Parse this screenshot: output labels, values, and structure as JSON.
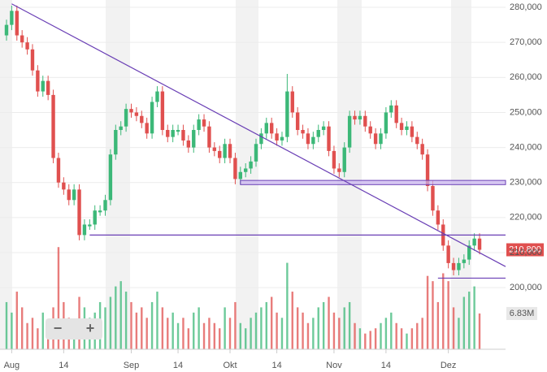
{
  "chart_data": {
    "type": "candlestick",
    "up_color": "#3cb878",
    "down_color": "#e0504f",
    "line_color": "#6a3fb5",
    "ylim": [
      182400,
      282100
    ],
    "yticks": [
      {
        "value": 200000,
        "label": "200,000"
      },
      {
        "value": 210000,
        "label": "210,000"
      },
      {
        "value": 220000,
        "label": "220,000"
      },
      {
        "value": 230000,
        "label": "230,000"
      },
      {
        "value": 240000,
        "label": "240,000"
      },
      {
        "value": 250000,
        "label": "250,000"
      },
      {
        "value": 260000,
        "label": "260,000"
      },
      {
        "value": 270000,
        "label": "270,000"
      },
      {
        "value": 280000,
        "label": "280,000"
      }
    ],
    "xlim": [
      -1.25,
      96
    ],
    "xticks": [
      {
        "value": 1,
        "label": "Aug"
      },
      {
        "value": 11,
        "label": "14"
      },
      {
        "value": 24,
        "label": "Sep"
      },
      {
        "value": 33,
        "label": "14"
      },
      {
        "value": 43,
        "label": "Okt"
      },
      {
        "value": 52,
        "label": "14"
      },
      {
        "value": 63,
        "label": "Nov"
      },
      {
        "value": 73,
        "label": "14"
      },
      {
        "value": 85,
        "label": "Dez"
      }
    ],
    "open": [
      272000,
      275000,
      279000,
      272000,
      270000,
      268000,
      262000,
      256000,
      259000,
      255000,
      237000,
      230000,
      228000,
      225000,
      228000,
      215000,
      217500,
      218000,
      221500,
      222000,
      225000,
      238000,
      245000,
      246000,
      251000,
      250000,
      249000,
      247000,
      244000,
      253000,
      256000,
      245000,
      243000,
      244500,
      245000,
      242000,
      240000,
      245000,
      248000,
      246000,
      240000,
      239000,
      237000,
      241000,
      237000,
      231000,
      233000,
      234000,
      236000,
      241000,
      244000,
      247000,
      244000,
      242000,
      243000,
      256000,
      250000,
      245000,
      244000,
      241000,
      243000,
      245000,
      246000,
      239000,
      234000,
      233000,
      240000,
      249000,
      248000,
      249000,
      246000,
      244000,
      241000,
      244000,
      250000,
      252000,
      247000,
      245000,
      246000,
      243000,
      241000,
      238000,
      229000,
      222000,
      218000,
      212000,
      207000,
      205000,
      207000,
      208000,
      212000,
      214000
    ],
    "high": [
      276500,
      280500,
      280500,
      273500,
      271500,
      269500,
      263500,
      260500,
      260500,
      256500,
      238500,
      231500,
      229500,
      229500,
      229500,
      219500,
      219500,
      223500,
      223500,
      226500,
      239500,
      246500,
      247500,
      252500,
      252500,
      251500,
      250500,
      248500,
      254500,
      257500,
      257500,
      246500,
      246500,
      246500,
      246500,
      243500,
      246500,
      249500,
      249500,
      247500,
      241500,
      240500,
      242500,
      242500,
      238500,
      234500,
      235500,
      237500,
      242500,
      245500,
      248500,
      248500,
      245500,
      244500,
      261000,
      257500,
      251500,
      246500,
      245500,
      244500,
      246500,
      247500,
      247500,
      240500,
      235500,
      241500,
      250500,
      250500,
      250500,
      250500,
      247500,
      245500,
      245500,
      251500,
      253500,
      253500,
      248500,
      247500,
      247500,
      244500,
      242500,
      239500,
      230500,
      223500,
      219500,
      213500,
      208500,
      208500,
      209500,
      213500,
      215500,
      215500
    ],
    "low": [
      270500,
      273500,
      270500,
      268500,
      266500,
      260500,
      254500,
      254500,
      253500,
      235500,
      228500,
      226500,
      223500,
      223500,
      213500,
      213500,
      216500,
      216500,
      220500,
      220500,
      223500,
      236500,
      243500,
      244500,
      248500,
      247500,
      245500,
      242500,
      242500,
      251500,
      243500,
      241500,
      241500,
      243500,
      240500,
      238500,
      238500,
      243500,
      244500,
      238500,
      237500,
      235500,
      235500,
      235500,
      229500,
      229500,
      231500,
      232500,
      234500,
      239500,
      242500,
      242500,
      240500,
      240500,
      241500,
      248500,
      243500,
      242500,
      239500,
      239500,
      241500,
      243500,
      237500,
      232500,
      231500,
      231500,
      238500,
      246500,
      246500,
      244500,
      242500,
      239500,
      239500,
      242500,
      248500,
      245500,
      243500,
      243500,
      241500,
      239500,
      236500,
      227500,
      220500,
      216500,
      210500,
      205500,
      203500,
      203500,
      205500,
      206500,
      210500,
      209500
    ],
    "close": [
      275000,
      279000,
      272000,
      270000,
      268000,
      262000,
      256000,
      259000,
      255000,
      237000,
      230000,
      228000,
      225000,
      228000,
      215000,
      218000,
      218000,
      222000,
      222000,
      225000,
      238000,
      245000,
      246000,
      251000,
      250000,
      249000,
      247000,
      244000,
      253000,
      256000,
      245000,
      243000,
      245000,
      245000,
      242000,
      240000,
      245000,
      248000,
      246000,
      240000,
      239000,
      237000,
      241000,
      237000,
      231000,
      233000,
      234000,
      236000,
      241000,
      244000,
      247000,
      244000,
      242000,
      243000,
      256000,
      250000,
      245000,
      244000,
      241000,
      243000,
      245000,
      246000,
      239000,
      234000,
      233000,
      240000,
      249000,
      248000,
      249000,
      246000,
      244000,
      241000,
      244000,
      250000,
      252000,
      247000,
      245000,
      246000,
      243000,
      241000,
      238000,
      229000,
      222000,
      218000,
      212000,
      207000,
      205000,
      207000,
      208000,
      212000,
      214000,
      210800
    ],
    "volume": [
      9,
      7,
      11,
      8,
      5,
      6,
      4,
      7,
      5,
      8,
      19.5,
      9,
      6,
      5,
      10,
      8,
      6,
      7,
      9,
      8,
      10,
      12,
      13,
      11,
      9,
      7,
      8,
      6,
      9,
      11,
      8,
      6,
      7,
      5,
      6,
      4,
      7,
      8,
      5,
      6,
      5,
      4,
      8,
      6,
      9,
      5,
      4,
      6,
      7,
      8,
      9,
      10,
      7,
      6,
      16.5,
      11,
      8,
      7,
      5,
      6,
      8,
      9,
      10,
      7,
      6,
      8,
      9,
      5,
      4,
      3,
      3.5,
      4,
      5,
      6,
      7,
      5,
      4,
      3,
      4,
      5,
      6,
      14,
      13,
      9,
      14.5,
      13,
      8,
      6,
      10,
      11,
      12,
      6.83
    ],
    "volume_ylim": [
      0,
      20
    ],
    "last_price_label": "210.800",
    "last_volume_label": "6.83M",
    "lines": [
      {
        "x": [
          1,
          96
        ],
        "y": [
          281000,
          206000
        ]
      },
      {
        "x": [
          16,
          96
        ],
        "y": [
          215000,
          215000
        ]
      },
      {
        "x": [
          83,
          96
        ],
        "y": [
          202700,
          202700
        ]
      }
    ],
    "zone": {
      "x": [
        45,
        96
      ],
      "y": [
        229400,
        230600
      ]
    },
    "zoom_out": "−",
    "zoom_in": "+"
  }
}
